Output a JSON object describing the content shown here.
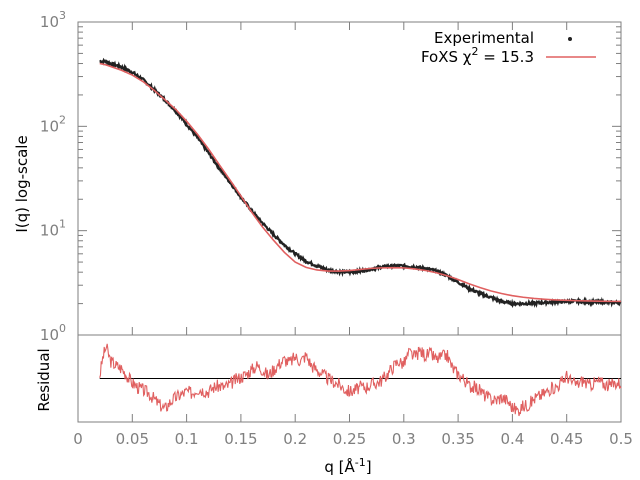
{
  "chart_data": [
    {
      "type": "line",
      "panel": "main",
      "ylabel": "I(q) log-scale",
      "yscale": "log",
      "ylim": [
        1,
        1000
      ],
      "xlim": [
        0,
        0.5
      ],
      "ytick_base": "10",
      "ytick_exponents": [
        "0",
        "1",
        "2",
        "3"
      ],
      "legend": {
        "placement": "top-right",
        "entries": [
          {
            "label": "Experimental",
            "marker": "point"
          },
          {
            "label_prefix": "FoXS χ",
            "label_sup": "2",
            "label_suffix": " = 15.3",
            "marker": "line"
          }
        ]
      },
      "series": [
        {
          "name": "Experimental",
          "color": "#222222",
          "x": [
            0.02,
            0.025,
            0.03,
            0.04,
            0.05,
            0.06,
            0.07,
            0.08,
            0.09,
            0.1,
            0.11,
            0.12,
            0.13,
            0.14,
            0.15,
            0.16,
            0.17,
            0.18,
            0.19,
            0.2,
            0.21,
            0.22,
            0.23,
            0.24,
            0.25,
            0.26,
            0.27,
            0.28,
            0.29,
            0.3,
            0.31,
            0.32,
            0.33,
            0.34,
            0.35,
            0.36,
            0.37,
            0.38,
            0.39,
            0.4,
            0.41,
            0.42,
            0.43,
            0.44,
            0.45,
            0.46,
            0.47,
            0.48,
            0.49,
            0.5
          ],
          "y": [
            420,
            420,
            400,
            370,
            330,
            280,
            225,
            180,
            140,
            105,
            78,
            56,
            40,
            29,
            21,
            15.5,
            11.8,
            9.2,
            7.3,
            6.0,
            5.1,
            4.6,
            4.2,
            4.05,
            4.0,
            4.1,
            4.3,
            4.5,
            4.6,
            4.6,
            4.5,
            4.35,
            4.1,
            3.7,
            3.2,
            2.8,
            2.5,
            2.3,
            2.1,
            2.0,
            2.0,
            2.02,
            2.05,
            2.08,
            2.1,
            2.1,
            2.08,
            2.07,
            2.05,
            2.05
          ]
        },
        {
          "name": "FoXS",
          "color": "#e06060",
          "x": [
            0.02,
            0.025,
            0.03,
            0.04,
            0.05,
            0.06,
            0.07,
            0.08,
            0.09,
            0.1,
            0.11,
            0.12,
            0.13,
            0.14,
            0.15,
            0.16,
            0.17,
            0.18,
            0.19,
            0.2,
            0.21,
            0.22,
            0.23,
            0.24,
            0.25,
            0.26,
            0.27,
            0.28,
            0.29,
            0.3,
            0.31,
            0.32,
            0.33,
            0.34,
            0.35,
            0.36,
            0.37,
            0.38,
            0.39,
            0.4,
            0.41,
            0.42,
            0.43,
            0.44,
            0.45,
            0.46,
            0.47,
            0.48,
            0.49,
            0.5
          ],
          "y": [
            400,
            390,
            375,
            345,
            310,
            268,
            222,
            180,
            145,
            112,
            84,
            61,
            43,
            30.5,
            21.5,
            15.0,
            10.8,
            8.1,
            6.2,
            5.0,
            4.45,
            4.2,
            4.1,
            4.1,
            4.15,
            4.25,
            4.35,
            4.4,
            4.42,
            4.4,
            4.3,
            4.15,
            3.95,
            3.7,
            3.4,
            3.1,
            2.85,
            2.65,
            2.5,
            2.38,
            2.3,
            2.24,
            2.2,
            2.17,
            2.15,
            2.13,
            2.12,
            2.11,
            2.1,
            2.1
          ]
        }
      ]
    },
    {
      "type": "line",
      "panel": "residual",
      "ylabel": "Residual",
      "xlabel_prefix": "q [Å",
      "xlabel_sup": "-1",
      "xlabel_suffix": "]",
      "xlim": [
        0,
        0.5
      ],
      "ylim": [
        -3,
        3
      ],
      "xticks": [
        "0",
        "0.05",
        "0.1",
        "0.15",
        "0.2",
        "0.25",
        "0.3",
        "0.35",
        "0.4",
        "0.45",
        "0.5"
      ],
      "reference_line": 0,
      "series": [
        {
          "name": "Residual",
          "color": "#e06060",
          "x": [
            0.02,
            0.023,
            0.026,
            0.03,
            0.035,
            0.04,
            0.045,
            0.05,
            0.055,
            0.06,
            0.065,
            0.07,
            0.075,
            0.08,
            0.085,
            0.09,
            0.095,
            0.1,
            0.105,
            0.11,
            0.115,
            0.12,
            0.125,
            0.13,
            0.135,
            0.14,
            0.145,
            0.15,
            0.155,
            0.16,
            0.165,
            0.17,
            0.175,
            0.18,
            0.185,
            0.19,
            0.195,
            0.2,
            0.205,
            0.21,
            0.215,
            0.22,
            0.225,
            0.23,
            0.235,
            0.24,
            0.245,
            0.25,
            0.255,
            0.26,
            0.265,
            0.27,
            0.275,
            0.28,
            0.285,
            0.29,
            0.295,
            0.3,
            0.305,
            0.31,
            0.315,
            0.32,
            0.325,
            0.33,
            0.335,
            0.34,
            0.345,
            0.35,
            0.355,
            0.36,
            0.365,
            0.37,
            0.375,
            0.38,
            0.385,
            0.39,
            0.395,
            0.4,
            0.405,
            0.41,
            0.415,
            0.42,
            0.425,
            0.43,
            0.435,
            0.44,
            0.445,
            0.45,
            0.455,
            0.46,
            0.465,
            0.47,
            0.475,
            0.48,
            0.485,
            0.49,
            0.495,
            0.5
          ],
          "y": [
            0.2,
            1.5,
            2.2,
            1.2,
            0.9,
            0.7,
            0.2,
            -0.3,
            -0.6,
            -0.8,
            -1.0,
            -1.4,
            -1.8,
            -2.1,
            -1.6,
            -1.3,
            -1.1,
            -0.9,
            -1.0,
            -0.7,
            -0.8,
            -0.9,
            -0.6,
            -0.5,
            -0.6,
            -0.4,
            -0.1,
            0.1,
            0.3,
            0.6,
            0.9,
            0.6,
            0.2,
            0.6,
            1.0,
            1.3,
            1.1,
            1.5,
            1.2,
            1.6,
            0.9,
            0.6,
            0.3,
            0.0,
            -0.2,
            -0.4,
            -0.7,
            -0.9,
            -0.8,
            -0.6,
            -0.6,
            -0.4,
            -0.3,
            -0.1,
            0.3,
            0.8,
            1.2,
            1.0,
            1.8,
            1.5,
            1.9,
            1.6,
            1.7,
            1.3,
            1.5,
            1.6,
            0.7,
            0.3,
            0.0,
            -0.5,
            -0.6,
            -0.8,
            -1.2,
            -1.4,
            -1.5,
            -1.3,
            -1.5,
            -2.0,
            -2.2,
            -1.9,
            -1.8,
            -1.4,
            -1.2,
            -1.0,
            -0.7,
            -0.6,
            -0.3,
            0.2,
            -0.3,
            -0.4,
            -0.1,
            -0.5,
            -0.3,
            -0.2,
            -0.4,
            -0.5,
            -0.3,
            -0.3
          ]
        }
      ]
    }
  ]
}
